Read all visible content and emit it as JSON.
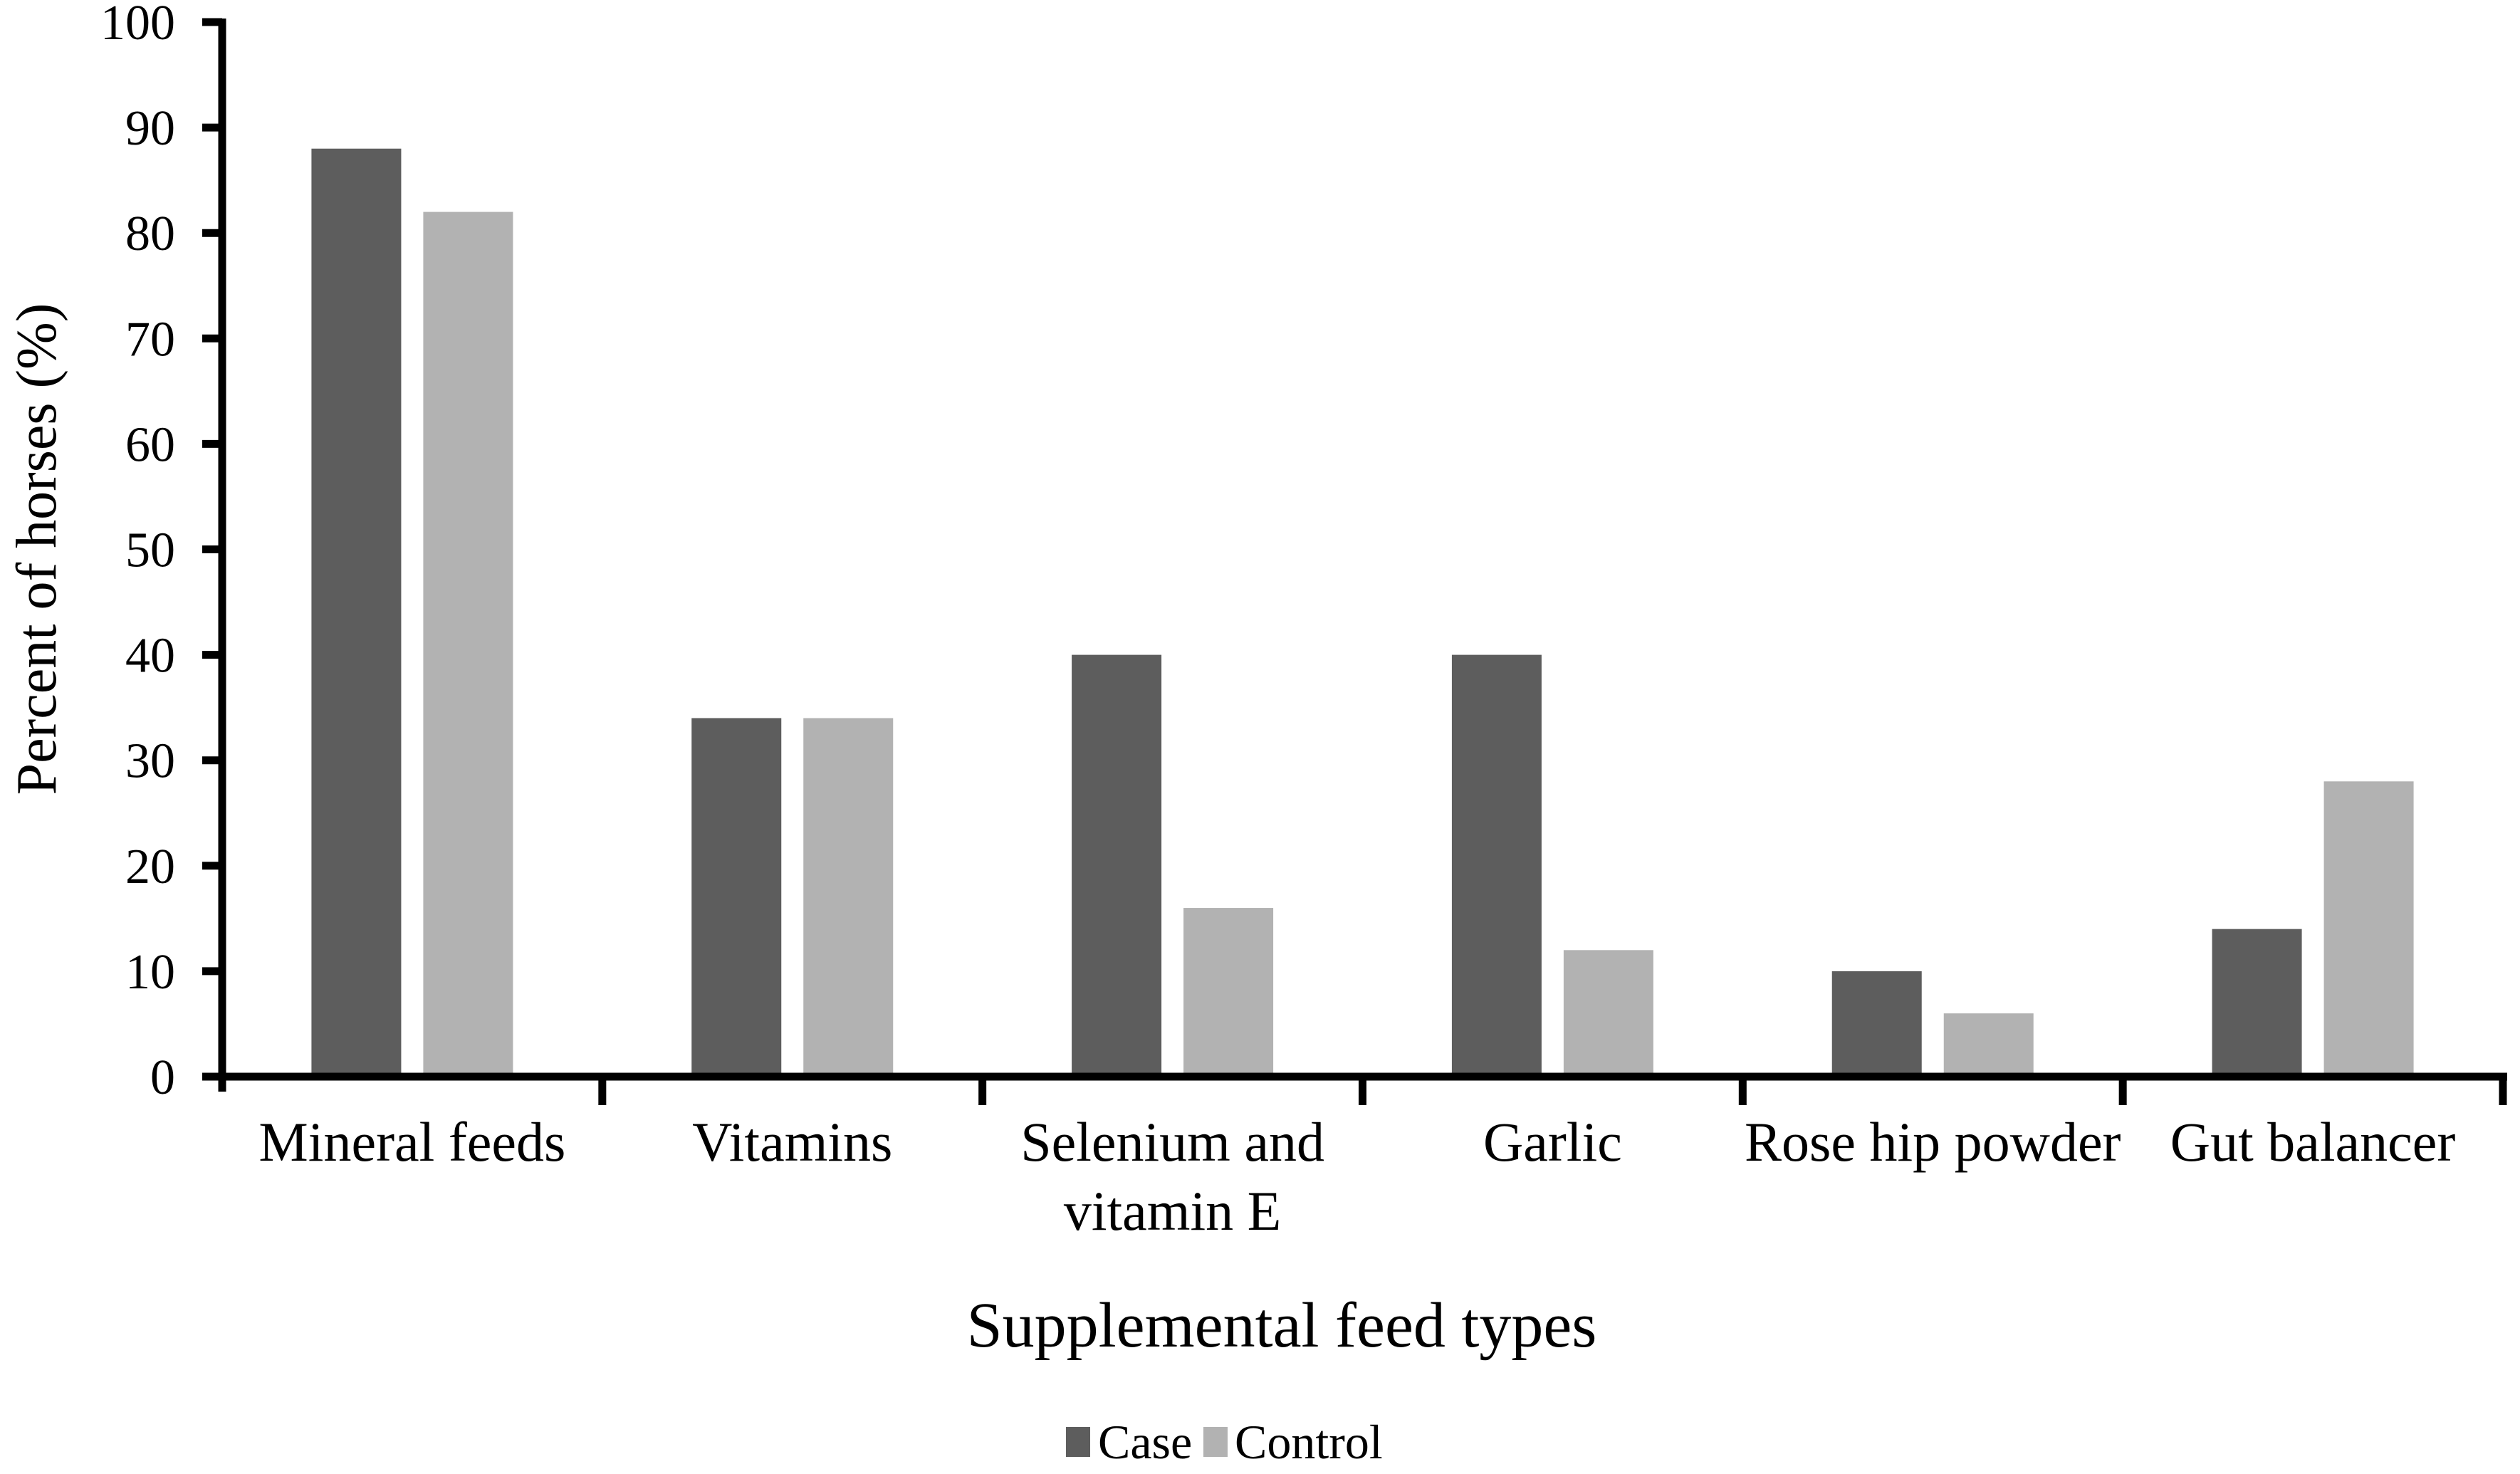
{
  "chart_data": {
    "type": "bar",
    "title": "",
    "xlabel": "Supplemental feed types",
    "ylabel": "Percent of horses (%)",
    "categories": [
      "Mineral feeds",
      "Vitamins",
      "Selenium and\nvitamin E",
      "Garlic",
      "Rose hip powder",
      "Gut balancer"
    ],
    "series": [
      {
        "name": "Case",
        "color": "#5d5d5d",
        "values": [
          88,
          34,
          40,
          40,
          10,
          14
        ]
      },
      {
        "name": "Control",
        "color": "#b2b2b2",
        "values": [
          82,
          34,
          16,
          12,
          6,
          28
        ]
      }
    ],
    "ylim": [
      0,
      100
    ],
    "ytick_step": 10,
    "grid": "off",
    "legend_position": "bottom",
    "axis_color": "#000000",
    "background_color": "#ffffff"
  }
}
